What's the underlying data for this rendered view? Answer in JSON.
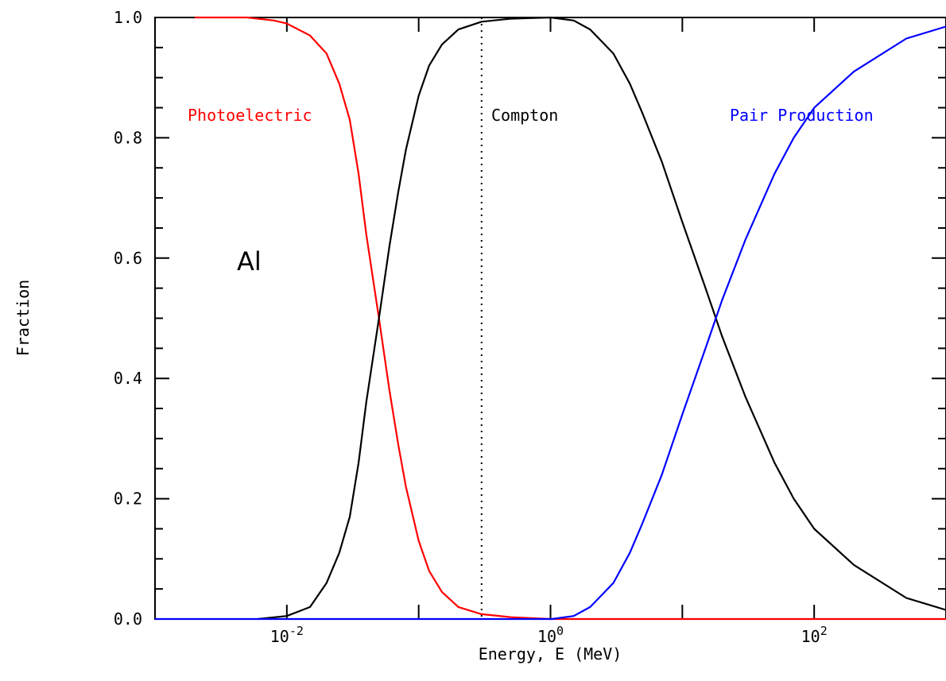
{
  "chart_data": {
    "type": "line",
    "title": "",
    "xlabel": "Energy, E (MeV)",
    "ylabel": "Fraction",
    "xscale": "log",
    "xlim": [
      0.001,
      1000
    ],
    "ylim": [
      0,
      1.0
    ],
    "grid": false,
    "x_tick_labels": [
      {
        "base": "10",
        "exp": "-2",
        "value": 0.01
      },
      {
        "base": "10",
        "exp": "0",
        "value": 1
      },
      {
        "base": "10",
        "exp": "2",
        "value": 100
      }
    ],
    "y_tick_labels": [
      "0.0",
      "0.2",
      "0.4",
      "0.6",
      "0.8",
      "1.0"
    ],
    "y_tick_values": [
      0,
      0.2,
      0.4,
      0.6,
      0.8,
      1.0
    ],
    "material_label": "Al",
    "vertical_marker_x": 0.3,
    "series": [
      {
        "name": "Photoelectric",
        "color": "#ff0000",
        "x": [
          0.002,
          0.005,
          0.008,
          0.01,
          0.015,
          0.02,
          0.025,
          0.03,
          0.035,
          0.04,
          0.05,
          0.06,
          0.07,
          0.08,
          0.1,
          0.12,
          0.15,
          0.2,
          0.3,
          0.5,
          1,
          10,
          100,
          1000
        ],
        "y": [
          1.0,
          1.0,
          0.995,
          0.99,
          0.97,
          0.94,
          0.89,
          0.83,
          0.74,
          0.64,
          0.5,
          0.38,
          0.29,
          0.22,
          0.13,
          0.08,
          0.045,
          0.02,
          0.008,
          0.003,
          0.0,
          0.0,
          0.0,
          0.0
        ]
      },
      {
        "name": "Compton",
        "color": "#000000",
        "x": [
          0.006,
          0.01,
          0.015,
          0.02,
          0.025,
          0.03,
          0.035,
          0.04,
          0.05,
          0.06,
          0.07,
          0.08,
          0.1,
          0.12,
          0.15,
          0.2,
          0.3,
          0.5,
          1,
          1.5,
          2,
          3,
          4,
          5,
          7,
          10,
          15,
          20,
          30,
          50,
          70,
          100,
          200,
          500,
          1000
        ],
        "y": [
          0.0,
          0.005,
          0.02,
          0.06,
          0.11,
          0.17,
          0.26,
          0.36,
          0.5,
          0.62,
          0.71,
          0.78,
          0.87,
          0.92,
          0.955,
          0.98,
          0.993,
          0.998,
          1.0,
          0.995,
          0.98,
          0.94,
          0.89,
          0.84,
          0.76,
          0.66,
          0.55,
          0.47,
          0.37,
          0.26,
          0.2,
          0.15,
          0.09,
          0.035,
          0.015
        ]
      },
      {
        "name": "Pair Production",
        "color": "#0000ff",
        "x": [
          0.001,
          1,
          1.022,
          1.5,
          2,
          3,
          4,
          5,
          7,
          10,
          15,
          20,
          30,
          50,
          70,
          100,
          200,
          500,
          1000
        ],
        "y": [
          0.0,
          0.0,
          0.0,
          0.005,
          0.02,
          0.06,
          0.11,
          0.16,
          0.24,
          0.34,
          0.45,
          0.53,
          0.63,
          0.74,
          0.8,
          0.85,
          0.91,
          0.965,
          0.985
        ]
      }
    ],
    "annotations": [
      {
        "text": "Photoelectric",
        "color": "#ff0000"
      },
      {
        "text": "Compton",
        "color": "#000000"
      },
      {
        "text": "Pair Production",
        "color": "#0000ff"
      }
    ]
  }
}
